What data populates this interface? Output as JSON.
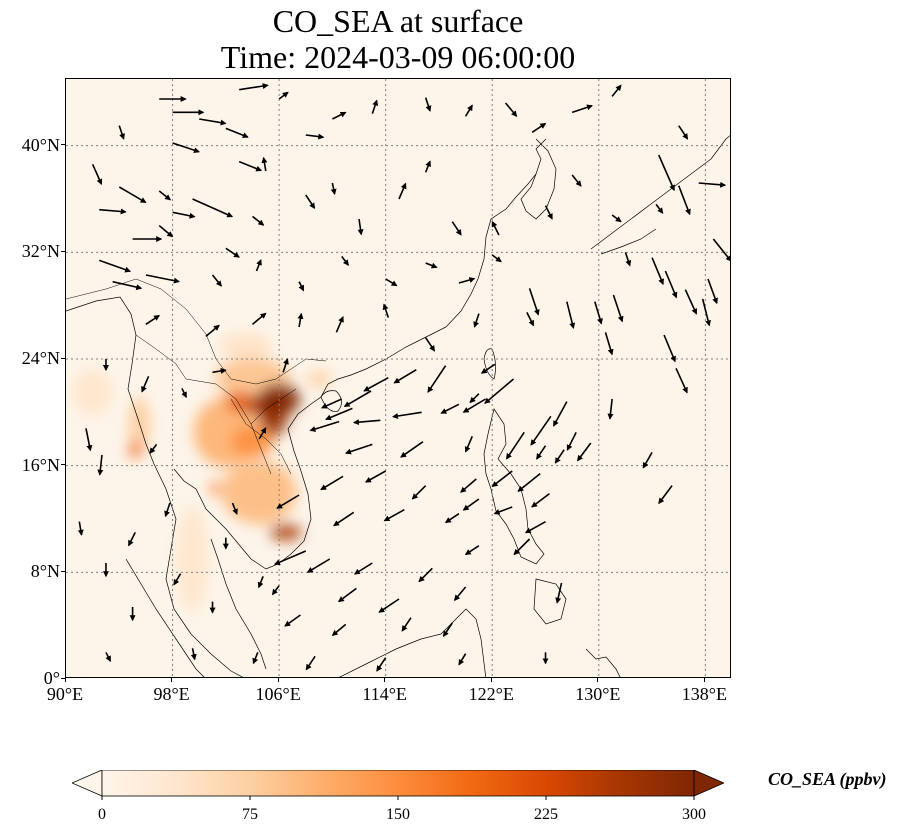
{
  "title": {
    "line1": "CO_SEA at surface",
    "line2": "Time: 2024-03-09 06:00:00"
  },
  "map": {
    "extent": {
      "lon_min": 90,
      "lon_max": 140,
      "lat_min": 0,
      "lat_max": 45
    },
    "background_color": "#fdf5ea",
    "coastline_color": "#000000",
    "gridline_style": "dotted",
    "gridline_color": "#808080",
    "lat_ticks": [
      {
        "value": 0,
        "label": "0°"
      },
      {
        "value": 8,
        "label": "8°N"
      },
      {
        "value": 16,
        "label": "16°N"
      },
      {
        "value": 24,
        "label": "24°N"
      },
      {
        "value": 32,
        "label": "32°N"
      },
      {
        "value": 40,
        "label": "40°N"
      }
    ],
    "lon_ticks": [
      {
        "value": 90,
        "label": "90°E"
      },
      {
        "value": 98,
        "label": "98°E"
      },
      {
        "value": 106,
        "label": "106°E"
      },
      {
        "value": 114,
        "label": "114°E"
      },
      {
        "value": 122,
        "label": "122°E"
      },
      {
        "value": 130,
        "label": "130°E"
      },
      {
        "value": 138,
        "label": "138°E"
      }
    ],
    "concentration_hotspots": [
      {
        "lon": 106.0,
        "lat": 21.0,
        "value": 300,
        "rx": 1.6,
        "ry": 1.2
      },
      {
        "lon": 105.6,
        "lat": 19.6,
        "value": 280,
        "rx": 1.0,
        "ry": 1.4
      },
      {
        "lon": 105.2,
        "lat": 20.5,
        "value": 260,
        "rx": 1.8,
        "ry": 0.9
      },
      {
        "lon": 106.5,
        "lat": 11.0,
        "value": 260,
        "rx": 1.2,
        "ry": 0.6
      },
      {
        "lon": 103.0,
        "lat": 20.8,
        "value": 200,
        "rx": 1.0,
        "ry": 0.8
      },
      {
        "lon": 95.2,
        "lat": 17.2,
        "value": 190,
        "rx": 0.5,
        "ry": 0.6
      },
      {
        "lon": 101.2,
        "lat": 14.3,
        "value": 170,
        "rx": 0.4,
        "ry": 0.5
      },
      {
        "lon": 104.0,
        "lat": 17.8,
        "value": 150,
        "rx": 1.6,
        "ry": 1.2
      },
      {
        "lon": 102.0,
        "lat": 18.5,
        "value": 110,
        "rx": 2.4,
        "ry": 2.6
      },
      {
        "lon": 104.5,
        "lat": 14.0,
        "value": 100,
        "rx": 2.8,
        "ry": 2.4
      },
      {
        "lon": 104.0,
        "lat": 22.5,
        "value": 90,
        "rx": 2.8,
        "ry": 1.6
      },
      {
        "lon": 95.5,
        "lat": 19.0,
        "value": 80,
        "rx": 0.8,
        "ry": 2.2
      },
      {
        "lon": 99.5,
        "lat": 9.0,
        "value": 40,
        "rx": 1.2,
        "ry": 4.0
      },
      {
        "lon": 109.0,
        "lat": 22.5,
        "value": 70,
        "rx": 0.9,
        "ry": 0.7
      },
      {
        "lon": 92.0,
        "lat": 21.5,
        "value": 40,
        "rx": 1.5,
        "ry": 1.8
      },
      {
        "lon": 103.5,
        "lat": 25.0,
        "value": 45,
        "rx": 2.0,
        "ry": 1.0
      }
    ],
    "wind_vectors": [
      {
        "lon": 97,
        "lat": 43.5,
        "u": 1.2,
        "v": 0.0
      },
      {
        "lon": 103,
        "lat": 44.2,
        "u": 1.3,
        "v": 0.2
      },
      {
        "lon": 106,
        "lat": 43.5,
        "u": 0.4,
        "v": 0.3
      },
      {
        "lon": 98,
        "lat": 42.5,
        "u": 1.4,
        "v": 0.0
      },
      {
        "lon": 100,
        "lat": 42.0,
        "u": 1.2,
        "v": -0.2
      },
      {
        "lon": 102,
        "lat": 41.3,
        "u": 1.0,
        "v": -0.4
      },
      {
        "lon": 94,
        "lat": 41.5,
        "u": 0.2,
        "v": -0.6
      },
      {
        "lon": 98,
        "lat": 40.2,
        "u": 1.2,
        "v": -0.4
      },
      {
        "lon": 103,
        "lat": 38.8,
        "u": 1.0,
        "v": -0.4
      },
      {
        "lon": 108,
        "lat": 40.8,
        "u": 0.8,
        "v": -0.1
      },
      {
        "lon": 110,
        "lat": 42.0,
        "u": 0.6,
        "v": 0.3
      },
      {
        "lon": 113,
        "lat": 42.4,
        "u": 0.2,
        "v": 0.6
      },
      {
        "lon": 117,
        "lat": 43.6,
        "u": 0.2,
        "v": -0.6
      },
      {
        "lon": 120,
        "lat": 42.2,
        "u": 0.3,
        "v": 0.5
      },
      {
        "lon": 123,
        "lat": 43.2,
        "u": 0.5,
        "v": -0.6
      },
      {
        "lon": 125,
        "lat": 41.0,
        "u": 0.6,
        "v": 0.4
      },
      {
        "lon": 128,
        "lat": 42.5,
        "u": 0.9,
        "v": 0.3
      },
      {
        "lon": 131,
        "lat": 43.7,
        "u": 0.4,
        "v": 0.5
      },
      {
        "lon": 136,
        "lat": 41.5,
        "u": 0.4,
        "v": -0.6
      },
      {
        "lon": 92,
        "lat": 38.6,
        "u": 0.4,
        "v": -0.9
      },
      {
        "lon": 94,
        "lat": 36.9,
        "u": 1.2,
        "v": -0.7
      },
      {
        "lon": 92.5,
        "lat": 35.2,
        "u": 1.2,
        "v": -0.1
      },
      {
        "lon": 97,
        "lat": 36.6,
        "u": 0.5,
        "v": -0.4
      },
      {
        "lon": 98,
        "lat": 35.0,
        "u": 1.0,
        "v": -0.2
      },
      {
        "lon": 99.5,
        "lat": 36.0,
        "u": 1.8,
        "v": -0.8
      },
      {
        "lon": 95,
        "lat": 33.0,
        "u": 1.3,
        "v": 0.0
      },
      {
        "lon": 97,
        "lat": 34.0,
        "u": 0.6,
        "v": -0.5
      },
      {
        "lon": 102,
        "lat": 32.3,
        "u": 0.6,
        "v": -0.4
      },
      {
        "lon": 104,
        "lat": 34.7,
        "u": 0.5,
        "v": -0.4
      },
      {
        "lon": 105,
        "lat": 38.1,
        "u": -0.1,
        "v": 0.6
      },
      {
        "lon": 108,
        "lat": 36.3,
        "u": 0.4,
        "v": -0.6
      },
      {
        "lon": 110,
        "lat": 37.2,
        "u": 0.1,
        "v": -0.5
      },
      {
        "lon": 112,
        "lat": 34.5,
        "u": 0.1,
        "v": -0.7
      },
      {
        "lon": 115,
        "lat": 36.0,
        "u": 0.3,
        "v": 0.7
      },
      {
        "lon": 117,
        "lat": 38.0,
        "u": 0.2,
        "v": 0.5
      },
      {
        "lon": 119,
        "lat": 34.3,
        "u": 0.4,
        "v": -0.6
      },
      {
        "lon": 122.5,
        "lat": 33.3,
        "u": -0.3,
        "v": 0.6
      },
      {
        "lon": 126,
        "lat": 35.5,
        "u": 0.3,
        "v": -0.6
      },
      {
        "lon": 128,
        "lat": 37.8,
        "u": 0.4,
        "v": -0.5
      },
      {
        "lon": 131,
        "lat": 34.8,
        "u": 0.4,
        "v": -0.3
      },
      {
        "lon": 134.5,
        "lat": 39.3,
        "u": 0.7,
        "v": -1.6
      },
      {
        "lon": 136,
        "lat": 37.0,
        "u": 0.5,
        "v": -1.3
      },
      {
        "lon": 137.5,
        "lat": 37.2,
        "u": 1.2,
        "v": -0.1
      },
      {
        "lon": 134.3,
        "lat": 35.6,
        "u": 0.3,
        "v": -0.4
      },
      {
        "lon": 138.6,
        "lat": 33.0,
        "u": 0.8,
        "v": -1.0
      },
      {
        "lon": 132,
        "lat": 32.0,
        "u": 0.2,
        "v": -0.6
      },
      {
        "lon": 134,
        "lat": 31.6,
        "u": 0.5,
        "v": -1.2
      },
      {
        "lon": 135,
        "lat": 30.6,
        "u": 0.5,
        "v": -1.2
      },
      {
        "lon": 136.5,
        "lat": 29.2,
        "u": 0.5,
        "v": -1.1
      },
      {
        "lon": 137.8,
        "lat": 28.5,
        "u": 0.3,
        "v": -1.2
      },
      {
        "lon": 138.2,
        "lat": 30.0,
        "u": 0.4,
        "v": -1.1
      },
      {
        "lon": 127.6,
        "lat": 28.3,
        "u": 0.3,
        "v": -1.2
      },
      {
        "lon": 129.7,
        "lat": 28.3,
        "u": 0.3,
        "v": -1.0
      },
      {
        "lon": 131.1,
        "lat": 28.8,
        "u": 0.4,
        "v": -1.2
      },
      {
        "lon": 130.5,
        "lat": 26.0,
        "u": 0.3,
        "v": -1.0
      },
      {
        "lon": 134.9,
        "lat": 25.8,
        "u": 0.5,
        "v": -1.2
      },
      {
        "lon": 135.8,
        "lat": 23.3,
        "u": 0.5,
        "v": -1.1
      },
      {
        "lon": 96,
        "lat": 30.3,
        "u": 1.5,
        "v": -0.3
      },
      {
        "lon": 92.5,
        "lat": 31.4,
        "u": 1.4,
        "v": -0.5
      },
      {
        "lon": 93.5,
        "lat": 29.8,
        "u": 1.3,
        "v": -0.3
      },
      {
        "lon": 101,
        "lat": 30.3,
        "u": 0.4,
        "v": -0.5
      },
      {
        "lon": 104.3,
        "lat": 30.6,
        "u": 0.2,
        "v": 0.5
      },
      {
        "lon": 107.5,
        "lat": 29.8,
        "u": 0.2,
        "v": -0.4
      },
      {
        "lon": 110.7,
        "lat": 31.7,
        "u": 0.3,
        "v": -0.4
      },
      {
        "lon": 114,
        "lat": 30.0,
        "u": 0.5,
        "v": -0.3
      },
      {
        "lon": 117,
        "lat": 31.2,
        "u": 0.5,
        "v": -0.2
      },
      {
        "lon": 119.5,
        "lat": 29.7,
        "u": 0.7,
        "v": 0.2
      },
      {
        "lon": 122,
        "lat": 31.8,
        "u": 0.4,
        "v": -0.3
      },
      {
        "lon": 124.8,
        "lat": 29.3,
        "u": 0.4,
        "v": -1.2
      },
      {
        "lon": 121,
        "lat": 27.4,
        "u": -0.2,
        "v": -0.6
      },
      {
        "lon": 124.6,
        "lat": 27.5,
        "u": 0.3,
        "v": -0.6
      },
      {
        "lon": 96,
        "lat": 26.6,
        "u": 0.6,
        "v": 0.4
      },
      {
        "lon": 100.5,
        "lat": 25.7,
        "u": 0.6,
        "v": 0.5
      },
      {
        "lon": 104,
        "lat": 26.6,
        "u": 0.6,
        "v": 0.5
      },
      {
        "lon": 107.5,
        "lat": 26.4,
        "u": 0.1,
        "v": 0.6
      },
      {
        "lon": 110.3,
        "lat": 26.0,
        "u": 0.3,
        "v": 0.7
      },
      {
        "lon": 114.2,
        "lat": 27.1,
        "u": -0.2,
        "v": 0.6
      },
      {
        "lon": 117,
        "lat": 25.6,
        "u": 0.4,
        "v": -0.6
      },
      {
        "lon": 93,
        "lat": 24.0,
        "u": 0.0,
        "v": -0.5
      },
      {
        "lon": 96.2,
        "lat": 22.7,
        "u": -0.3,
        "v": -0.7
      },
      {
        "lon": 98.7,
        "lat": 21.8,
        "u": 0.2,
        "v": -0.4
      },
      {
        "lon": 101,
        "lat": 23.0,
        "u": 0.6,
        "v": 0.1
      },
      {
        "lon": 106.3,
        "lat": 23.0,
        "u": 0.2,
        "v": 0.6
      },
      {
        "lon": 110.7,
        "lat": 21.0,
        "u": -0.9,
        "v": -0.4
      },
      {
        "lon": 111.5,
        "lat": 20.3,
        "u": -1.2,
        "v": -0.5
      },
      {
        "lon": 112.9,
        "lat": 21.6,
        "u": -1.2,
        "v": -0.7
      },
      {
        "lon": 114.2,
        "lat": 22.6,
        "u": -1.1,
        "v": -0.6
      },
      {
        "lon": 116.3,
        "lat": 23.2,
        "u": -1.0,
        "v": -0.6
      },
      {
        "lon": 118.5,
        "lat": 23.5,
        "u": -0.8,
        "v": -1.2
      },
      {
        "lon": 110.5,
        "lat": 19.3,
        "u": -1.3,
        "v": -0.4
      },
      {
        "lon": 113.6,
        "lat": 19.4,
        "u": -1.2,
        "v": -0.1
      },
      {
        "lon": 116.7,
        "lat": 20.0,
        "u": -1.3,
        "v": -0.2
      },
      {
        "lon": 121.0,
        "lat": 21.4,
        "u": -0.4,
        "v": -0.4
      },
      {
        "lon": 122.2,
        "lat": 23.6,
        "u": -0.6,
        "v": -0.4
      },
      {
        "lon": 121.5,
        "lat": 21.0,
        "u": -1.0,
        "v": -0.6
      },
      {
        "lon": 119.5,
        "lat": 20.6,
        "u": -0.8,
        "v": -0.4
      },
      {
        "lon": 123.6,
        "lat": 22.5,
        "u": -1.3,
        "v": -1.1
      },
      {
        "lon": 113,
        "lat": 17.6,
        "u": -1.2,
        "v": -0.4
      },
      {
        "lon": 116.8,
        "lat": 17.8,
        "u": -1.0,
        "v": -0.7
      },
      {
        "lon": 120.5,
        "lat": 18.2,
        "u": -0.3,
        "v": -0.7
      },
      {
        "lon": 124.4,
        "lat": 18.5,
        "u": -0.8,
        "v": -1.2
      },
      {
        "lon": 126.4,
        "lat": 19.7,
        "u": -0.9,
        "v": -1.3
      },
      {
        "lon": 127.6,
        "lat": 20.8,
        "u": -0.6,
        "v": -1.1
      },
      {
        "lon": 131.0,
        "lat": 21.0,
        "u": -0.1,
        "v": -0.9
      },
      {
        "lon": 126.0,
        "lat": 17.5,
        "u": -0.4,
        "v": -0.6
      },
      {
        "lon": 127.4,
        "lat": 17.2,
        "u": -0.4,
        "v": -0.6
      },
      {
        "lon": 128.3,
        "lat": 18.5,
        "u": -0.4,
        "v": -0.8
      },
      {
        "lon": 129.4,
        "lat": 17.7,
        "u": -0.6,
        "v": -0.8
      },
      {
        "lon": 134.0,
        "lat": 17.0,
        "u": -0.4,
        "v": -0.7
      },
      {
        "lon": 96.8,
        "lat": 17.6,
        "u": -0.3,
        "v": -0.4
      },
      {
        "lon": 91.5,
        "lat": 18.8,
        "u": 0.2,
        "v": -1.0
      },
      {
        "lon": 92.7,
        "lat": 16.8,
        "u": -0.1,
        "v": -0.9
      },
      {
        "lon": 104.5,
        "lat": 18.0,
        "u": 0.3,
        "v": 0.5
      },
      {
        "lon": 110.8,
        "lat": 15.2,
        "u": -1.0,
        "v": -0.6
      },
      {
        "lon": 114.0,
        "lat": 15.6,
        "u": -0.9,
        "v": -0.5
      },
      {
        "lon": 117.0,
        "lat": 14.5,
        "u": -0.6,
        "v": -0.6
      },
      {
        "lon": 120.8,
        "lat": 15.0,
        "u": -0.7,
        "v": -0.6
      },
      {
        "lon": 123.5,
        "lat": 15.6,
        "u": -0.9,
        "v": -0.7
      },
      {
        "lon": 125.6,
        "lat": 15.4,
        "u": -1.0,
        "v": -0.8
      },
      {
        "lon": 126.3,
        "lat": 13.9,
        "u": -0.8,
        "v": -0.6
      },
      {
        "lon": 135.5,
        "lat": 14.5,
        "u": -0.6,
        "v": -0.8
      },
      {
        "lon": 102.5,
        "lat": 13.2,
        "u": 0.2,
        "v": -0.5
      },
      {
        "lon": 107.5,
        "lat": 13.8,
        "u": -1.0,
        "v": -0.6
      },
      {
        "lon": 111.6,
        "lat": 12.5,
        "u": -0.9,
        "v": -0.6
      },
      {
        "lon": 115.4,
        "lat": 12.7,
        "u": -0.9,
        "v": -0.5
      },
      {
        "lon": 119.5,
        "lat": 12.4,
        "u": -0.6,
        "v": -0.4
      },
      {
        "lon": 121.0,
        "lat": 13.5,
        "u": -0.7,
        "v": -0.5
      },
      {
        "lon": 123.5,
        "lat": 12.9,
        "u": -0.8,
        "v": -0.3
      },
      {
        "lon": 126.0,
        "lat": 11.8,
        "u": -0.9,
        "v": -0.5
      },
      {
        "lon": 97.8,
        "lat": 13.2,
        "u": -0.2,
        "v": -0.6
      },
      {
        "lon": 91.0,
        "lat": 11.8,
        "u": 0.1,
        "v": -0.6
      },
      {
        "lon": 95.2,
        "lat": 11.0,
        "u": -0.3,
        "v": -0.6
      },
      {
        "lon": 102.0,
        "lat": 10.6,
        "u": 0.0,
        "v": -0.5
      },
      {
        "lon": 108.0,
        "lat": 9.6,
        "u": -1.4,
        "v": -0.6
      },
      {
        "lon": 109.8,
        "lat": 9.0,
        "u": -1.0,
        "v": -0.6
      },
      {
        "lon": 113.0,
        "lat": 8.7,
        "u": -0.8,
        "v": -0.5
      },
      {
        "lon": 117.5,
        "lat": 8.3,
        "u": -0.6,
        "v": -0.6
      },
      {
        "lon": 121.0,
        "lat": 10.0,
        "u": -0.6,
        "v": -0.4
      },
      {
        "lon": 124.8,
        "lat": 10.5,
        "u": -0.7,
        "v": -0.7
      },
      {
        "lon": 93.0,
        "lat": 8.7,
        "u": 0.0,
        "v": -0.6
      },
      {
        "lon": 98.6,
        "lat": 7.9,
        "u": -0.3,
        "v": -0.5
      },
      {
        "lon": 104.8,
        "lat": 7.7,
        "u": -0.2,
        "v": -0.5
      },
      {
        "lon": 106.0,
        "lat": 7.0,
        "u": -0.3,
        "v": -0.4
      },
      {
        "lon": 111.8,
        "lat": 6.8,
        "u": -0.8,
        "v": -0.6
      },
      {
        "lon": 115.0,
        "lat": 6.0,
        "u": -0.9,
        "v": -0.6
      },
      {
        "lon": 120.0,
        "lat": 6.9,
        "u": -0.5,
        "v": -0.6
      },
      {
        "lon": 127.2,
        "lat": 7.2,
        "u": -0.2,
        "v": -0.9
      },
      {
        "lon": 95.0,
        "lat": 5.4,
        "u": 0.0,
        "v": -0.6
      },
      {
        "lon": 101.0,
        "lat": 5.8,
        "u": 0.0,
        "v": -0.5
      },
      {
        "lon": 107.6,
        "lat": 4.8,
        "u": -0.7,
        "v": -0.5
      },
      {
        "lon": 111.0,
        "lat": 4.1,
        "u": -0.6,
        "v": -0.5
      },
      {
        "lon": 115.9,
        "lat": 4.6,
        "u": -0.4,
        "v": -0.6
      },
      {
        "lon": 119.0,
        "lat": 4.2,
        "u": -0.4,
        "v": -0.6
      },
      {
        "lon": 93.0,
        "lat": 2.0,
        "u": 0.2,
        "v": -0.4
      },
      {
        "lon": 99.5,
        "lat": 2.3,
        "u": 0.1,
        "v": -0.5
      },
      {
        "lon": 104.4,
        "lat": 2.0,
        "u": -0.2,
        "v": -0.5
      },
      {
        "lon": 108.7,
        "lat": 1.7,
        "u": -0.4,
        "v": -0.6
      },
      {
        "lon": 114.0,
        "lat": 1.6,
        "u": -0.4,
        "v": -0.6
      },
      {
        "lon": 120.0,
        "lat": 1.9,
        "u": -0.3,
        "v": -0.5
      },
      {
        "lon": 126.0,
        "lat": 2.0,
        "u": 0.0,
        "v": -0.5
      }
    ]
  },
  "colorbar": {
    "label": "CO_SEA (ppbv)",
    "min": 0,
    "max": 300,
    "extend": "both",
    "colormap": [
      "#fff5eb",
      "#fee6ce",
      "#fdd0a2",
      "#fdae6b",
      "#fd8d3c",
      "#f16913",
      "#d94801",
      "#a63603",
      "#7f2704"
    ],
    "colormap_stops": [
      0,
      0.125,
      0.25,
      0.375,
      0.5,
      0.625,
      0.75,
      0.875,
      1
    ],
    "ticks": [
      {
        "value": 0,
        "label": "0"
      },
      {
        "value": 75,
        "label": "75"
      },
      {
        "value": 150,
        "label": "150"
      },
      {
        "value": 225,
        "label": "225"
      },
      {
        "value": 300,
        "label": "300"
      }
    ]
  }
}
